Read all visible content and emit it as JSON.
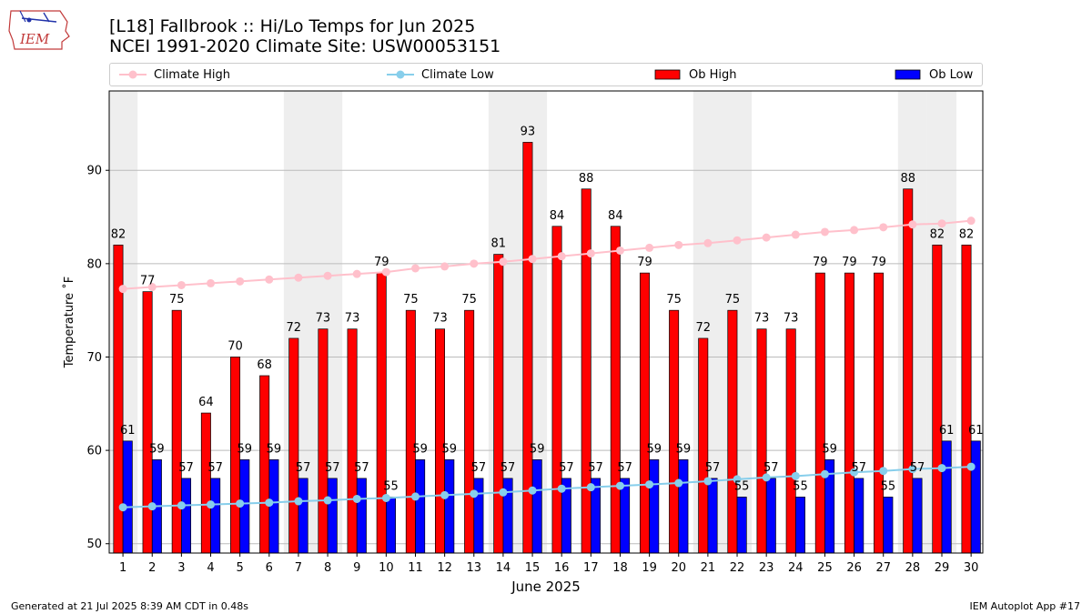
{
  "header": {
    "title_line1": "[L18] Fallbrook :: Hi/Lo Temps for Jun 2025",
    "title_line2": "NCEI 1991-2020 Climate Site: USW00053151",
    "logo_text": "IEM"
  },
  "legend": {
    "climate_high": "Climate High",
    "climate_low": "Climate Low",
    "ob_high": "Ob High",
    "ob_low": "Ob Low"
  },
  "footer": {
    "generated": "Generated at 21 Jul 2025 8:39 AM CDT in 0.48s",
    "app": "IEM Autoplot App #17"
  },
  "colors": {
    "ob_high": "#ff0000",
    "ob_low": "#0000ff",
    "climate_high": "#ffc0cb",
    "climate_low": "#87ceeb",
    "weekend_band": "#eeeeee",
    "grid": "#bbbbbb"
  },
  "chart_data": {
    "type": "bar",
    "xlabel": "June 2025",
    "ylabel": "Temperature ˚F",
    "ylim": [
      49,
      98.5
    ],
    "yticks": [
      50,
      60,
      70,
      80,
      90
    ],
    "grid": "horizontal",
    "legend_position": "top",
    "x": [
      1,
      2,
      3,
      4,
      5,
      6,
      7,
      8,
      9,
      10,
      11,
      12,
      13,
      14,
      15,
      16,
      17,
      18,
      19,
      20,
      21,
      22,
      23,
      24,
      25,
      26,
      27,
      28,
      29,
      30
    ],
    "weekend_days": [
      1,
      7,
      8,
      14,
      15,
      21,
      22,
      28,
      29
    ],
    "series": [
      {
        "name": "Ob High",
        "kind": "bar",
        "values": [
          82,
          77,
          75,
          64,
          70,
          68,
          72,
          73,
          73,
          79,
          75,
          73,
          75,
          81,
          93,
          84,
          88,
          84,
          79,
          75,
          72,
          75,
          73,
          73,
          79,
          79,
          79,
          88,
          82,
          82
        ]
      },
      {
        "name": "Ob Low",
        "kind": "bar",
        "values": [
          61,
          59,
          57,
          57,
          59,
          59,
          57,
          57,
          57,
          55,
          59,
          59,
          57,
          57,
          59,
          57,
          57,
          57,
          59,
          59,
          57,
          55,
          57,
          55,
          59,
          57,
          55,
          57,
          61,
          61
        ]
      },
      {
        "name": "Climate High",
        "kind": "line",
        "values": [
          77.3,
          77.5,
          77.7,
          77.9,
          78.1,
          78.3,
          78.5,
          78.7,
          78.9,
          79.1,
          79.5,
          79.7,
          80.0,
          80.2,
          80.5,
          80.8,
          81.1,
          81.4,
          81.7,
          82.0,
          82.2,
          82.5,
          82.8,
          83.1,
          83.4,
          83.6,
          83.9,
          84.2,
          84.3,
          84.6
        ]
      },
      {
        "name": "Climate Low",
        "kind": "line",
        "values": [
          53.9,
          54.0,
          54.1,
          54.2,
          54.3,
          54.4,
          54.55,
          54.65,
          54.8,
          54.9,
          55.05,
          55.2,
          55.35,
          55.5,
          55.7,
          55.9,
          56.05,
          56.2,
          56.35,
          56.5,
          56.7,
          56.9,
          57.1,
          57.25,
          57.45,
          57.65,
          57.8,
          58.0,
          58.1,
          58.25
        ]
      }
    ]
  }
}
